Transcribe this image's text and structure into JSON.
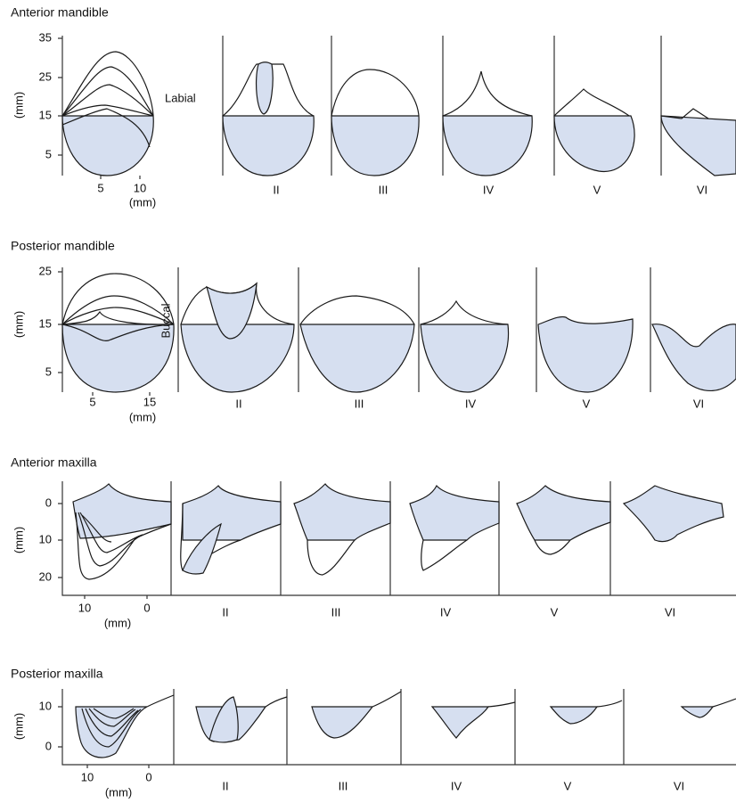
{
  "sections": [
    {
      "title": "Anterior mandible",
      "y_label": "(mm)",
      "y_ticks": [
        35,
        25,
        15,
        5
      ],
      "x_ticks": [
        5,
        10
      ],
      "x_label": "(mm)",
      "side_label": "Labial",
      "panels": [
        "II",
        "III",
        "IV",
        "V",
        "VI"
      ]
    },
    {
      "title": "Posterior mandible",
      "y_label": "(mm)",
      "y_ticks": [
        25,
        15,
        5
      ],
      "x_ticks": [
        5,
        15
      ],
      "x_label": "(mm)",
      "side_label": "Buccal",
      "panels": [
        "II",
        "III",
        "IV",
        "V",
        "VI"
      ]
    },
    {
      "title": "Anterior maxilla",
      "y_label": "(mm)",
      "y_ticks": [
        0,
        10,
        20
      ],
      "x_ticks": [
        10,
        0
      ],
      "x_label": "(mm)",
      "panels": [
        "II",
        "III",
        "IV",
        "V",
        "VI"
      ]
    },
    {
      "title": "Posterior maxilla",
      "y_label": "(mm)",
      "y_ticks": [
        10,
        0
      ],
      "x_ticks": [
        10,
        0
      ],
      "x_label": "(mm)",
      "panels": [
        "II",
        "III",
        "IV",
        "V",
        "VI"
      ]
    }
  ]
}
